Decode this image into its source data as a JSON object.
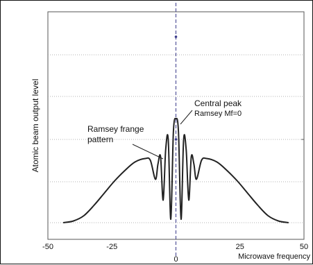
{
  "chart_data": {
    "type": "line",
    "title": "",
    "xlabel": "Microwave frequency",
    "ylabel": "Atomic beam output level",
    "xlim": [
      -50,
      50
    ],
    "ylim": [
      0,
      1
    ],
    "x_ticks": [
      {
        "value": -50,
        "label": "-50"
      },
      {
        "value": -25,
        "label": "-25"
      },
      {
        "value": 0,
        "label": "0"
      },
      {
        "value": 25,
        "label": "25"
      },
      {
        "value": 50,
        "label": "50"
      }
    ],
    "grid": "dotted-horizontal",
    "center_line": {
      "x": 0,
      "style": "dashed"
    },
    "series": [
      {
        "x": [
          -44,
          -40,
          -36,
          -32,
          -28,
          -24,
          -20,
          -16,
          -12,
          -10,
          -8,
          -7,
          -6,
          -5,
          -4,
          -3,
          -2,
          -1,
          0,
          1,
          2,
          3,
          4,
          5,
          6,
          7,
          8,
          10,
          12,
          16,
          20,
          24,
          28,
          32,
          36,
          40,
          44
        ],
        "y": [
          0.0,
          0.01,
          0.04,
          0.1,
          0.17,
          0.24,
          0.3,
          0.35,
          0.37,
          0.36,
          0.25,
          0.34,
          0.38,
          0.13,
          0.42,
          0.48,
          0.02,
          0.52,
          0.6,
          0.52,
          0.02,
          0.48,
          0.42,
          0.13,
          0.38,
          0.34,
          0.25,
          0.36,
          0.37,
          0.35,
          0.3,
          0.24,
          0.17,
          0.1,
          0.04,
          0.01,
          0.0
        ]
      }
    ],
    "annotations": [
      {
        "text": "Central peak",
        "x": 0,
        "y": 0.6
      },
      {
        "text": "Ramsey Mf=0",
        "x": 0,
        "y": 0.6
      },
      {
        "text": "Ramsey frange",
        "x": -5,
        "y": 0.45
      },
      {
        "text": "pattern",
        "x": -5,
        "y": 0.45
      }
    ]
  }
}
